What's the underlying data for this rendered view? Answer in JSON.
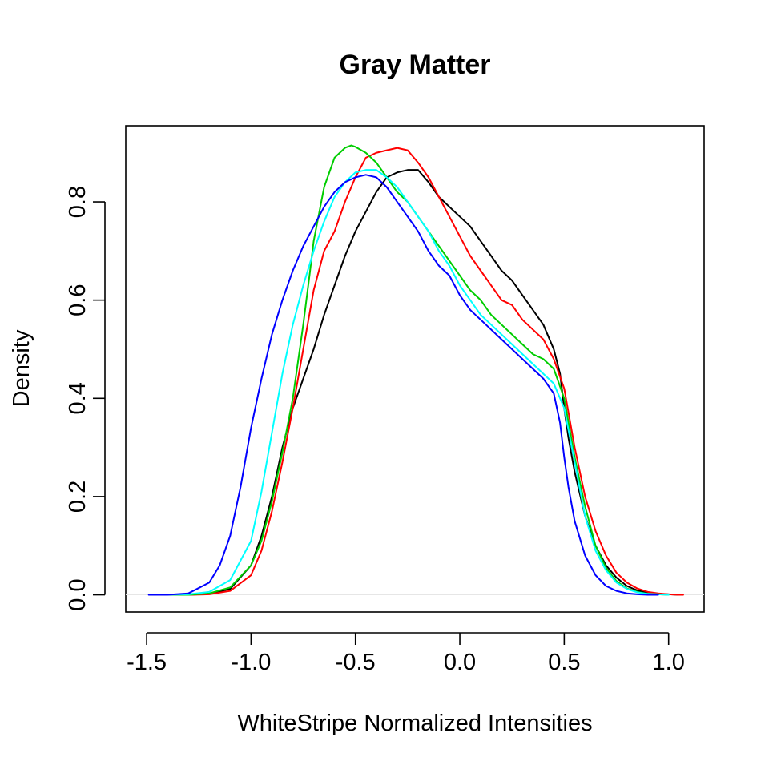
{
  "chart_data": {
    "type": "line",
    "title": "Gray Matter",
    "xlabel": "WhiteStripe Normalized Intensities",
    "ylabel": "Density",
    "xlim": [
      -1.6,
      1.17
    ],
    "ylim": [
      -0.035,
      0.955
    ],
    "x_ticks": [
      -1.5,
      -1.0,
      -0.5,
      0.0,
      0.5,
      1.0
    ],
    "x_tick_labels": [
      "-1.5",
      "-1.0",
      "-0.5",
      "0.0",
      "0.5",
      "1.0"
    ],
    "y_ticks": [
      0.0,
      0.2,
      0.4,
      0.6,
      0.8
    ],
    "y_tick_labels": [
      "0.0",
      "0.2",
      "0.4",
      "0.6",
      "0.8"
    ],
    "grid": false,
    "legend": "none",
    "zero_line": true,
    "series": [
      {
        "color": "#000000",
        "x": [
          -1.44,
          -1.3,
          -1.2,
          -1.1,
          -1.0,
          -0.95,
          -0.9,
          -0.85,
          -0.8,
          -0.75,
          -0.7,
          -0.65,
          -0.6,
          -0.55,
          -0.5,
          -0.45,
          -0.4,
          -0.35,
          -0.3,
          -0.25,
          -0.2,
          -0.15,
          -0.1,
          -0.05,
          0.0,
          0.05,
          0.1,
          0.15,
          0.2,
          0.25,
          0.3,
          0.35,
          0.4,
          0.45,
          0.48,
          0.5,
          0.52,
          0.55,
          0.6,
          0.65,
          0.7,
          0.75,
          0.8,
          0.85,
          0.9,
          0.95,
          1.0,
          1.05
        ],
        "y": [
          0.0,
          0.0,
          0.002,
          0.012,
          0.06,
          0.12,
          0.2,
          0.3,
          0.38,
          0.44,
          0.5,
          0.57,
          0.63,
          0.69,
          0.74,
          0.78,
          0.82,
          0.85,
          0.86,
          0.865,
          0.865,
          0.84,
          0.81,
          0.79,
          0.77,
          0.75,
          0.72,
          0.69,
          0.66,
          0.64,
          0.61,
          0.58,
          0.55,
          0.5,
          0.45,
          0.38,
          0.32,
          0.25,
          0.16,
          0.1,
          0.06,
          0.035,
          0.018,
          0.009,
          0.004,
          0.002,
          0.001,
          0.0
        ]
      },
      {
        "color": "#ff0000",
        "x": [
          -1.44,
          -1.3,
          -1.2,
          -1.1,
          -1.0,
          -0.95,
          -0.9,
          -0.85,
          -0.8,
          -0.75,
          -0.7,
          -0.65,
          -0.6,
          -0.55,
          -0.5,
          -0.45,
          -0.4,
          -0.35,
          -0.3,
          -0.25,
          -0.2,
          -0.15,
          -0.1,
          -0.05,
          0.0,
          0.05,
          0.1,
          0.15,
          0.2,
          0.25,
          0.3,
          0.35,
          0.4,
          0.45,
          0.5,
          0.55,
          0.6,
          0.65,
          0.7,
          0.75,
          0.8,
          0.85,
          0.9,
          0.95,
          1.0,
          1.05,
          1.07
        ],
        "y": [
          0.0,
          0.0,
          0.001,
          0.008,
          0.04,
          0.09,
          0.17,
          0.27,
          0.38,
          0.5,
          0.62,
          0.7,
          0.74,
          0.8,
          0.85,
          0.89,
          0.9,
          0.905,
          0.91,
          0.905,
          0.88,
          0.85,
          0.81,
          0.77,
          0.73,
          0.69,
          0.66,
          0.63,
          0.6,
          0.59,
          0.56,
          0.54,
          0.52,
          0.48,
          0.42,
          0.3,
          0.2,
          0.13,
          0.08,
          0.045,
          0.025,
          0.013,
          0.006,
          0.003,
          0.001,
          0.0,
          0.0
        ]
      },
      {
        "color": "#00cd00",
        "x": [
          -1.44,
          -1.3,
          -1.2,
          -1.1,
          -1.0,
          -0.95,
          -0.9,
          -0.85,
          -0.8,
          -0.75,
          -0.72,
          -0.7,
          -0.65,
          -0.6,
          -0.55,
          -0.52,
          -0.5,
          -0.45,
          -0.4,
          -0.35,
          -0.3,
          -0.25,
          -0.2,
          -0.15,
          -0.1,
          -0.05,
          0.0,
          0.05,
          0.1,
          0.15,
          0.2,
          0.25,
          0.3,
          0.35,
          0.4,
          0.45,
          0.5,
          0.55,
          0.6,
          0.65,
          0.7,
          0.75,
          0.8,
          0.85,
          0.9,
          0.95,
          1.0
        ],
        "y": [
          0.0,
          0.0,
          0.003,
          0.015,
          0.06,
          0.11,
          0.19,
          0.29,
          0.4,
          0.55,
          0.65,
          0.72,
          0.83,
          0.89,
          0.91,
          0.915,
          0.912,
          0.9,
          0.88,
          0.85,
          0.82,
          0.8,
          0.77,
          0.74,
          0.71,
          0.68,
          0.65,
          0.62,
          0.6,
          0.57,
          0.55,
          0.53,
          0.51,
          0.49,
          0.48,
          0.46,
          0.4,
          0.28,
          0.18,
          0.1,
          0.055,
          0.028,
          0.013,
          0.006,
          0.002,
          0.001,
          0.0
        ]
      },
      {
        "color": "#00ffff",
        "x": [
          -1.44,
          -1.3,
          -1.2,
          -1.1,
          -1.0,
          -0.95,
          -0.9,
          -0.85,
          -0.8,
          -0.75,
          -0.7,
          -0.65,
          -0.6,
          -0.55,
          -0.5,
          -0.45,
          -0.4,
          -0.35,
          -0.3,
          -0.25,
          -0.2,
          -0.15,
          -0.1,
          -0.05,
          0.0,
          0.05,
          0.1,
          0.15,
          0.2,
          0.25,
          0.3,
          0.35,
          0.4,
          0.45,
          0.5,
          0.55,
          0.6,
          0.65,
          0.7,
          0.75,
          0.8,
          0.85,
          0.9,
          0.95,
          1.0
        ],
        "y": [
          0.0,
          0.001,
          0.006,
          0.03,
          0.11,
          0.21,
          0.33,
          0.45,
          0.55,
          0.63,
          0.7,
          0.76,
          0.81,
          0.84,
          0.86,
          0.865,
          0.865,
          0.85,
          0.83,
          0.8,
          0.77,
          0.74,
          0.7,
          0.67,
          0.63,
          0.6,
          0.57,
          0.55,
          0.53,
          0.51,
          0.49,
          0.47,
          0.45,
          0.43,
          0.38,
          0.27,
          0.16,
          0.09,
          0.05,
          0.025,
          0.012,
          0.005,
          0.002,
          0.001,
          0.0
        ]
      },
      {
        "color": "#0000ff",
        "x": [
          -1.49,
          -1.4,
          -1.3,
          -1.2,
          -1.15,
          -1.1,
          -1.05,
          -1.0,
          -0.95,
          -0.9,
          -0.85,
          -0.8,
          -0.75,
          -0.7,
          -0.65,
          -0.6,
          -0.55,
          -0.5,
          -0.45,
          -0.4,
          -0.35,
          -0.3,
          -0.25,
          -0.2,
          -0.15,
          -0.1,
          -0.05,
          0.0,
          0.05,
          0.1,
          0.15,
          0.2,
          0.25,
          0.3,
          0.35,
          0.4,
          0.45,
          0.48,
          0.5,
          0.52,
          0.55,
          0.6,
          0.65,
          0.7,
          0.75,
          0.8,
          0.85,
          0.9,
          0.95
        ],
        "y": [
          0.0,
          0.0,
          0.003,
          0.025,
          0.06,
          0.12,
          0.22,
          0.34,
          0.44,
          0.53,
          0.6,
          0.66,
          0.71,
          0.75,
          0.79,
          0.82,
          0.84,
          0.85,
          0.855,
          0.85,
          0.83,
          0.8,
          0.77,
          0.74,
          0.7,
          0.67,
          0.65,
          0.61,
          0.58,
          0.56,
          0.54,
          0.52,
          0.5,
          0.48,
          0.46,
          0.44,
          0.41,
          0.35,
          0.28,
          0.22,
          0.15,
          0.08,
          0.04,
          0.018,
          0.008,
          0.003,
          0.001,
          0.0,
          0.0
        ]
      }
    ]
  }
}
